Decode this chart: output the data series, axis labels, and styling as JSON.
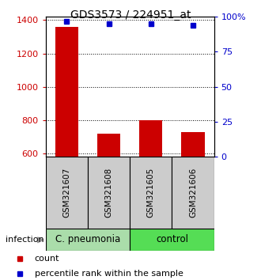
{
  "title": "GDS3573 / 224951_at",
  "samples": [
    "GSM321607",
    "GSM321608",
    "GSM321605",
    "GSM321606"
  ],
  "counts": [
    1360,
    720,
    800,
    730
  ],
  "percentiles": [
    97,
    95,
    95,
    94
  ],
  "ylim_left": [
    580,
    1420
  ],
  "ylim_right": [
    0,
    100
  ],
  "yticks_left": [
    600,
    800,
    1000,
    1200,
    1400
  ],
  "yticks_right": [
    0,
    25,
    50,
    75,
    100
  ],
  "ytick_right_labels": [
    "0",
    "25",
    "50",
    "75",
    "100%"
  ],
  "bar_color": "#cc0000",
  "dot_color": "#0000cc",
  "group1_label": "C. pneumonia",
  "group2_label": "control",
  "group1_color": "#aaddaa",
  "group2_color": "#55dd55",
  "infection_label": "infection",
  "legend_count_label": "count",
  "legend_pct_label": "percentile rank within the sample",
  "background_color": "#ffffff",
  "grid_color": "#000000",
  "title_fontsize": 10,
  "tick_fontsize": 8,
  "sample_label_fontsize": 7.5,
  "group_fontsize": 8.5,
  "legend_fontsize": 8,
  "box_color": "#cccccc"
}
